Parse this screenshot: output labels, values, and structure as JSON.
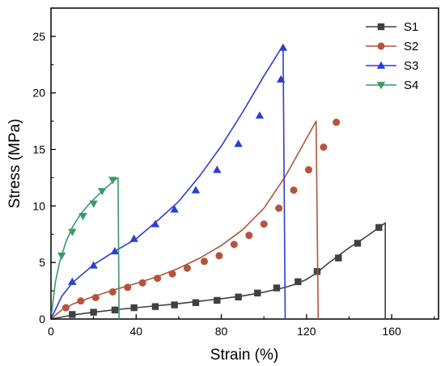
{
  "chart_data": {
    "type": "line",
    "xlabel": "Strain (%)",
    "ylabel": "Stress (MPa)",
    "xlim": [
      0,
      182
    ],
    "ylim": [
      0,
      27.5
    ],
    "xticks": [
      0,
      40,
      80,
      120,
      160
    ],
    "yticks": [
      0,
      5,
      10,
      15,
      20,
      25
    ],
    "xtick_labels": [
      "0",
      "40",
      "80",
      "120",
      "160"
    ],
    "ytick_labels": [
      "0",
      "5",
      "10",
      "15",
      "20",
      "25"
    ],
    "grid": false,
    "legend_position": "top-right",
    "series": [
      {
        "name": "S1",
        "color": "#404040",
        "marker": "square",
        "curve": [
          [
            0,
            0
          ],
          [
            10,
            0.35
          ],
          [
            20,
            0.6
          ],
          [
            30,
            0.82
          ],
          [
            40,
            1.0
          ],
          [
            50,
            1.18
          ],
          [
            60,
            1.37
          ],
          [
            70,
            1.58
          ],
          [
            80,
            1.8
          ],
          [
            90,
            2.05
          ],
          [
            100,
            2.38
          ],
          [
            110,
            2.8
          ],
          [
            115,
            3.1
          ],
          [
            120,
            3.5
          ],
          [
            125,
            4.1
          ],
          [
            130,
            4.9
          ],
          [
            135,
            5.6
          ],
          [
            140,
            6.3
          ],
          [
            145,
            6.9
          ],
          [
            150,
            7.55
          ],
          [
            157,
            8.5
          ],
          [
            157,
            0
          ]
        ],
        "markers": [
          [
            10,
            0.4
          ],
          [
            20,
            0.6
          ],
          [
            30,
            0.8
          ],
          [
            39,
            1.0
          ],
          [
            49,
            1.1
          ],
          [
            58,
            1.25
          ],
          [
            68,
            1.45
          ],
          [
            78,
            1.65
          ],
          [
            88,
            1.95
          ],
          [
            97,
            2.3
          ],
          [
            106,
            2.75
          ],
          [
            116,
            3.3
          ],
          [
            125,
            4.2
          ],
          [
            135,
            5.4
          ],
          [
            144,
            6.7
          ],
          [
            154,
            8.1
          ]
        ]
      },
      {
        "name": "S2",
        "color": "#b5533c",
        "marker": "circle",
        "curve": [
          [
            0,
            0
          ],
          [
            5,
            0.8
          ],
          [
            10,
            1.3
          ],
          [
            20,
            2.0
          ],
          [
            30,
            2.6
          ],
          [
            40,
            3.15
          ],
          [
            50,
            3.75
          ],
          [
            60,
            4.5
          ],
          [
            70,
            5.4
          ],
          [
            80,
            6.5
          ],
          [
            90,
            7.9
          ],
          [
            100,
            9.8
          ],
          [
            110,
            12.6
          ],
          [
            118,
            15.3
          ],
          [
            124.5,
            17.5
          ],
          [
            125.5,
            0
          ]
        ],
        "markers": [
          [
            7,
            1.0
          ],
          [
            14,
            1.6
          ],
          [
            21,
            1.9
          ],
          [
            29,
            2.4
          ],
          [
            36,
            2.8
          ],
          [
            43,
            3.2
          ],
          [
            50,
            3.6
          ],
          [
            57,
            4.0
          ],
          [
            64,
            4.5
          ],
          [
            72,
            5.1
          ],
          [
            79,
            5.6
          ],
          [
            86,
            6.6
          ],
          [
            93,
            7.4
          ],
          [
            100,
            8.4
          ],
          [
            107,
            9.8
          ],
          [
            114,
            11.4
          ],
          [
            121,
            13.2
          ],
          [
            128,
            15.2
          ],
          [
            134,
            17.4
          ]
        ]
      },
      {
        "name": "S3",
        "color": "#2a3fd1",
        "marker": "triangle-up",
        "curve": [
          [
            0,
            0
          ],
          [
            5,
            2.0
          ],
          [
            10,
            3.2
          ],
          [
            20,
            4.8
          ],
          [
            30,
            6.0
          ],
          [
            40,
            7.1
          ],
          [
            50,
            8.7
          ],
          [
            60,
            10.4
          ],
          [
            70,
            12.7
          ],
          [
            80,
            15.3
          ],
          [
            90,
            18.3
          ],
          [
            100,
            21.5
          ],
          [
            108,
            23.9
          ],
          [
            109,
            23.9
          ],
          [
            110,
            0
          ]
        ],
        "markers": [
          [
            10,
            3.3
          ],
          [
            20,
            4.75
          ],
          [
            30,
            6.0
          ],
          [
            39,
            7.1
          ],
          [
            49,
            8.4
          ],
          [
            58,
            9.7
          ],
          [
            68,
            11.4
          ],
          [
            78,
            13.2
          ],
          [
            88,
            15.5
          ],
          [
            98,
            18.0
          ],
          [
            108,
            21.2
          ],
          [
            109,
            24.0
          ]
        ]
      },
      {
        "name": "S4",
        "color": "#3b9a67",
        "marker": "triangle-down",
        "curve": [
          [
            0,
            0
          ],
          [
            2,
            3.2
          ],
          [
            4,
            5.0
          ],
          [
            7,
            6.8
          ],
          [
            10,
            8.1
          ],
          [
            14,
            9.3
          ],
          [
            19,
            10.4
          ],
          [
            24,
            11.3
          ],
          [
            30,
            12.3
          ],
          [
            31.5,
            12.5
          ],
          [
            32,
            0
          ]
        ],
        "markers": [
          [
            5,
            5.6
          ],
          [
            10,
            7.7
          ],
          [
            15,
            9.1
          ],
          [
            20,
            10.2
          ],
          [
            24,
            11.3
          ],
          [
            29,
            12.3
          ]
        ]
      }
    ]
  }
}
